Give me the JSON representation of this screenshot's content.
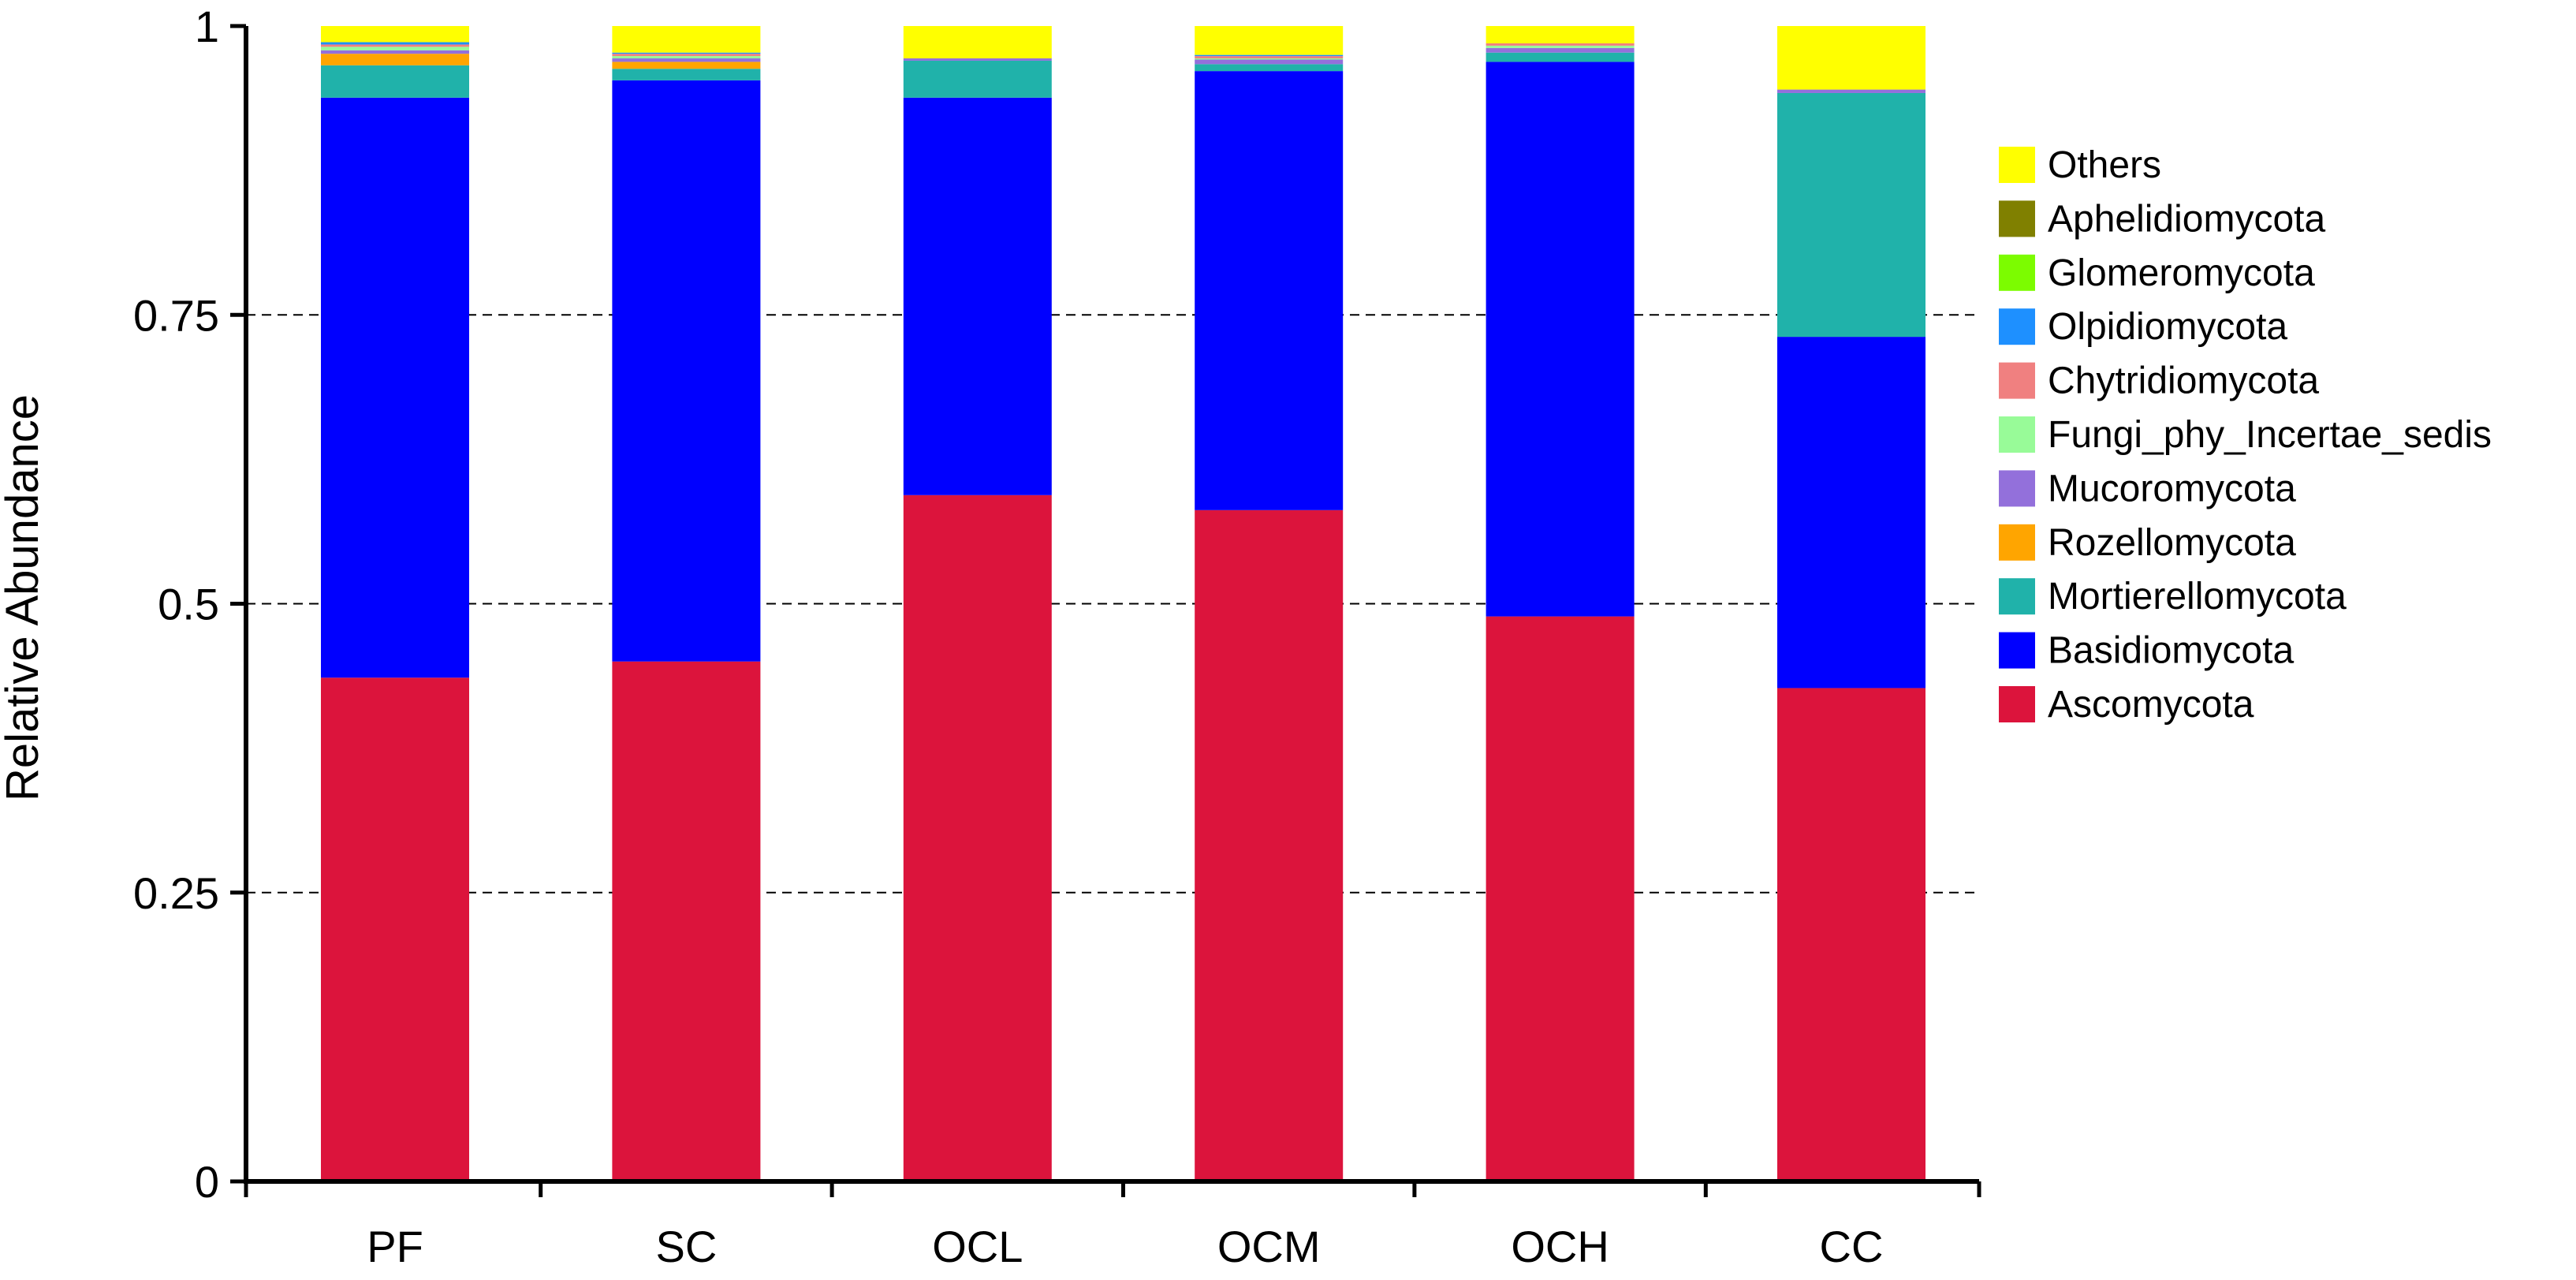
{
  "chart_data": {
    "type": "bar",
    "stacked": true,
    "title": "",
    "xlabel": "",
    "ylabel": "Relative Abundance",
    "ylim": [
      0,
      1
    ],
    "yticks": [
      0,
      0.25,
      0.5,
      0.75,
      1
    ],
    "ytick_labels": [
      "0",
      "0.25",
      "0.5",
      "0.75",
      "1"
    ],
    "grid": "dashed horizontal at 0.25, 0.5, 0.75",
    "legend_position": "right",
    "categories": [
      "PF",
      "SC",
      "OCL",
      "OCM",
      "OCH",
      "CC"
    ],
    "series": [
      {
        "name": "Ascomycota",
        "color": "#DC143C",
        "values": [
          0.436,
          0.45,
          0.594,
          0.581,
          0.489,
          0.427
        ]
      },
      {
        "name": "Basidiomycota",
        "color": "#0000FF",
        "values": [
          0.502,
          0.503,
          0.344,
          0.38,
          0.48,
          0.304
        ]
      },
      {
        "name": "Mortierellomycota",
        "color": "#20B2AA",
        "values": [
          0.028,
          0.01,
          0.032,
          0.006,
          0.008,
          0.211
        ]
      },
      {
        "name": "Rozellomycota",
        "color": "#FFA500",
        "values": [
          0.01,
          0.006,
          0.0,
          0.0,
          0.0,
          0.0
        ]
      },
      {
        "name": "Mucoromycota",
        "color": "#9370DB",
        "values": [
          0.003,
          0.003,
          0.002,
          0.004,
          0.004,
          0.003
        ]
      },
      {
        "name": "Fungi_phy_Incertae_sedis",
        "color": "#98FB98",
        "values": [
          0.003,
          0.002,
          0.0,
          0.001,
          0.002,
          0.0
        ]
      },
      {
        "name": "Chytridiomycota",
        "color": "#F08080",
        "values": [
          0.002,
          0.002,
          0.0,
          0.002,
          0.002,
          0.0
        ]
      },
      {
        "name": "Olpidiomycota",
        "color": "#1E90FF",
        "values": [
          0.002,
          0.001,
          0.0,
          0.001,
          0.0,
          0.0
        ]
      },
      {
        "name": "Glomeromycota",
        "color": "#7CFC00",
        "values": [
          0.0,
          0.0,
          0.0,
          0.0,
          0.0,
          0.0
        ]
      },
      {
        "name": "Aphelidiomycota",
        "color": "#808000",
        "values": [
          0.0,
          0.0,
          0.0,
          0.0,
          0.0,
          0.0
        ]
      },
      {
        "name": "Others",
        "color": "#FFFF00",
        "values": [
          0.014,
          0.023,
          0.028,
          0.025,
          0.015,
          0.055
        ]
      }
    ],
    "legend_order": [
      "Others",
      "Aphelidiomycota",
      "Glomeromycota",
      "Olpidiomycota",
      "Chytridiomycota",
      "Fungi_phy_Incertae_sedis",
      "Mucoromycota",
      "Rozellomycota",
      "Mortierellomycota",
      "Basidiomycota",
      "Ascomycota"
    ]
  }
}
